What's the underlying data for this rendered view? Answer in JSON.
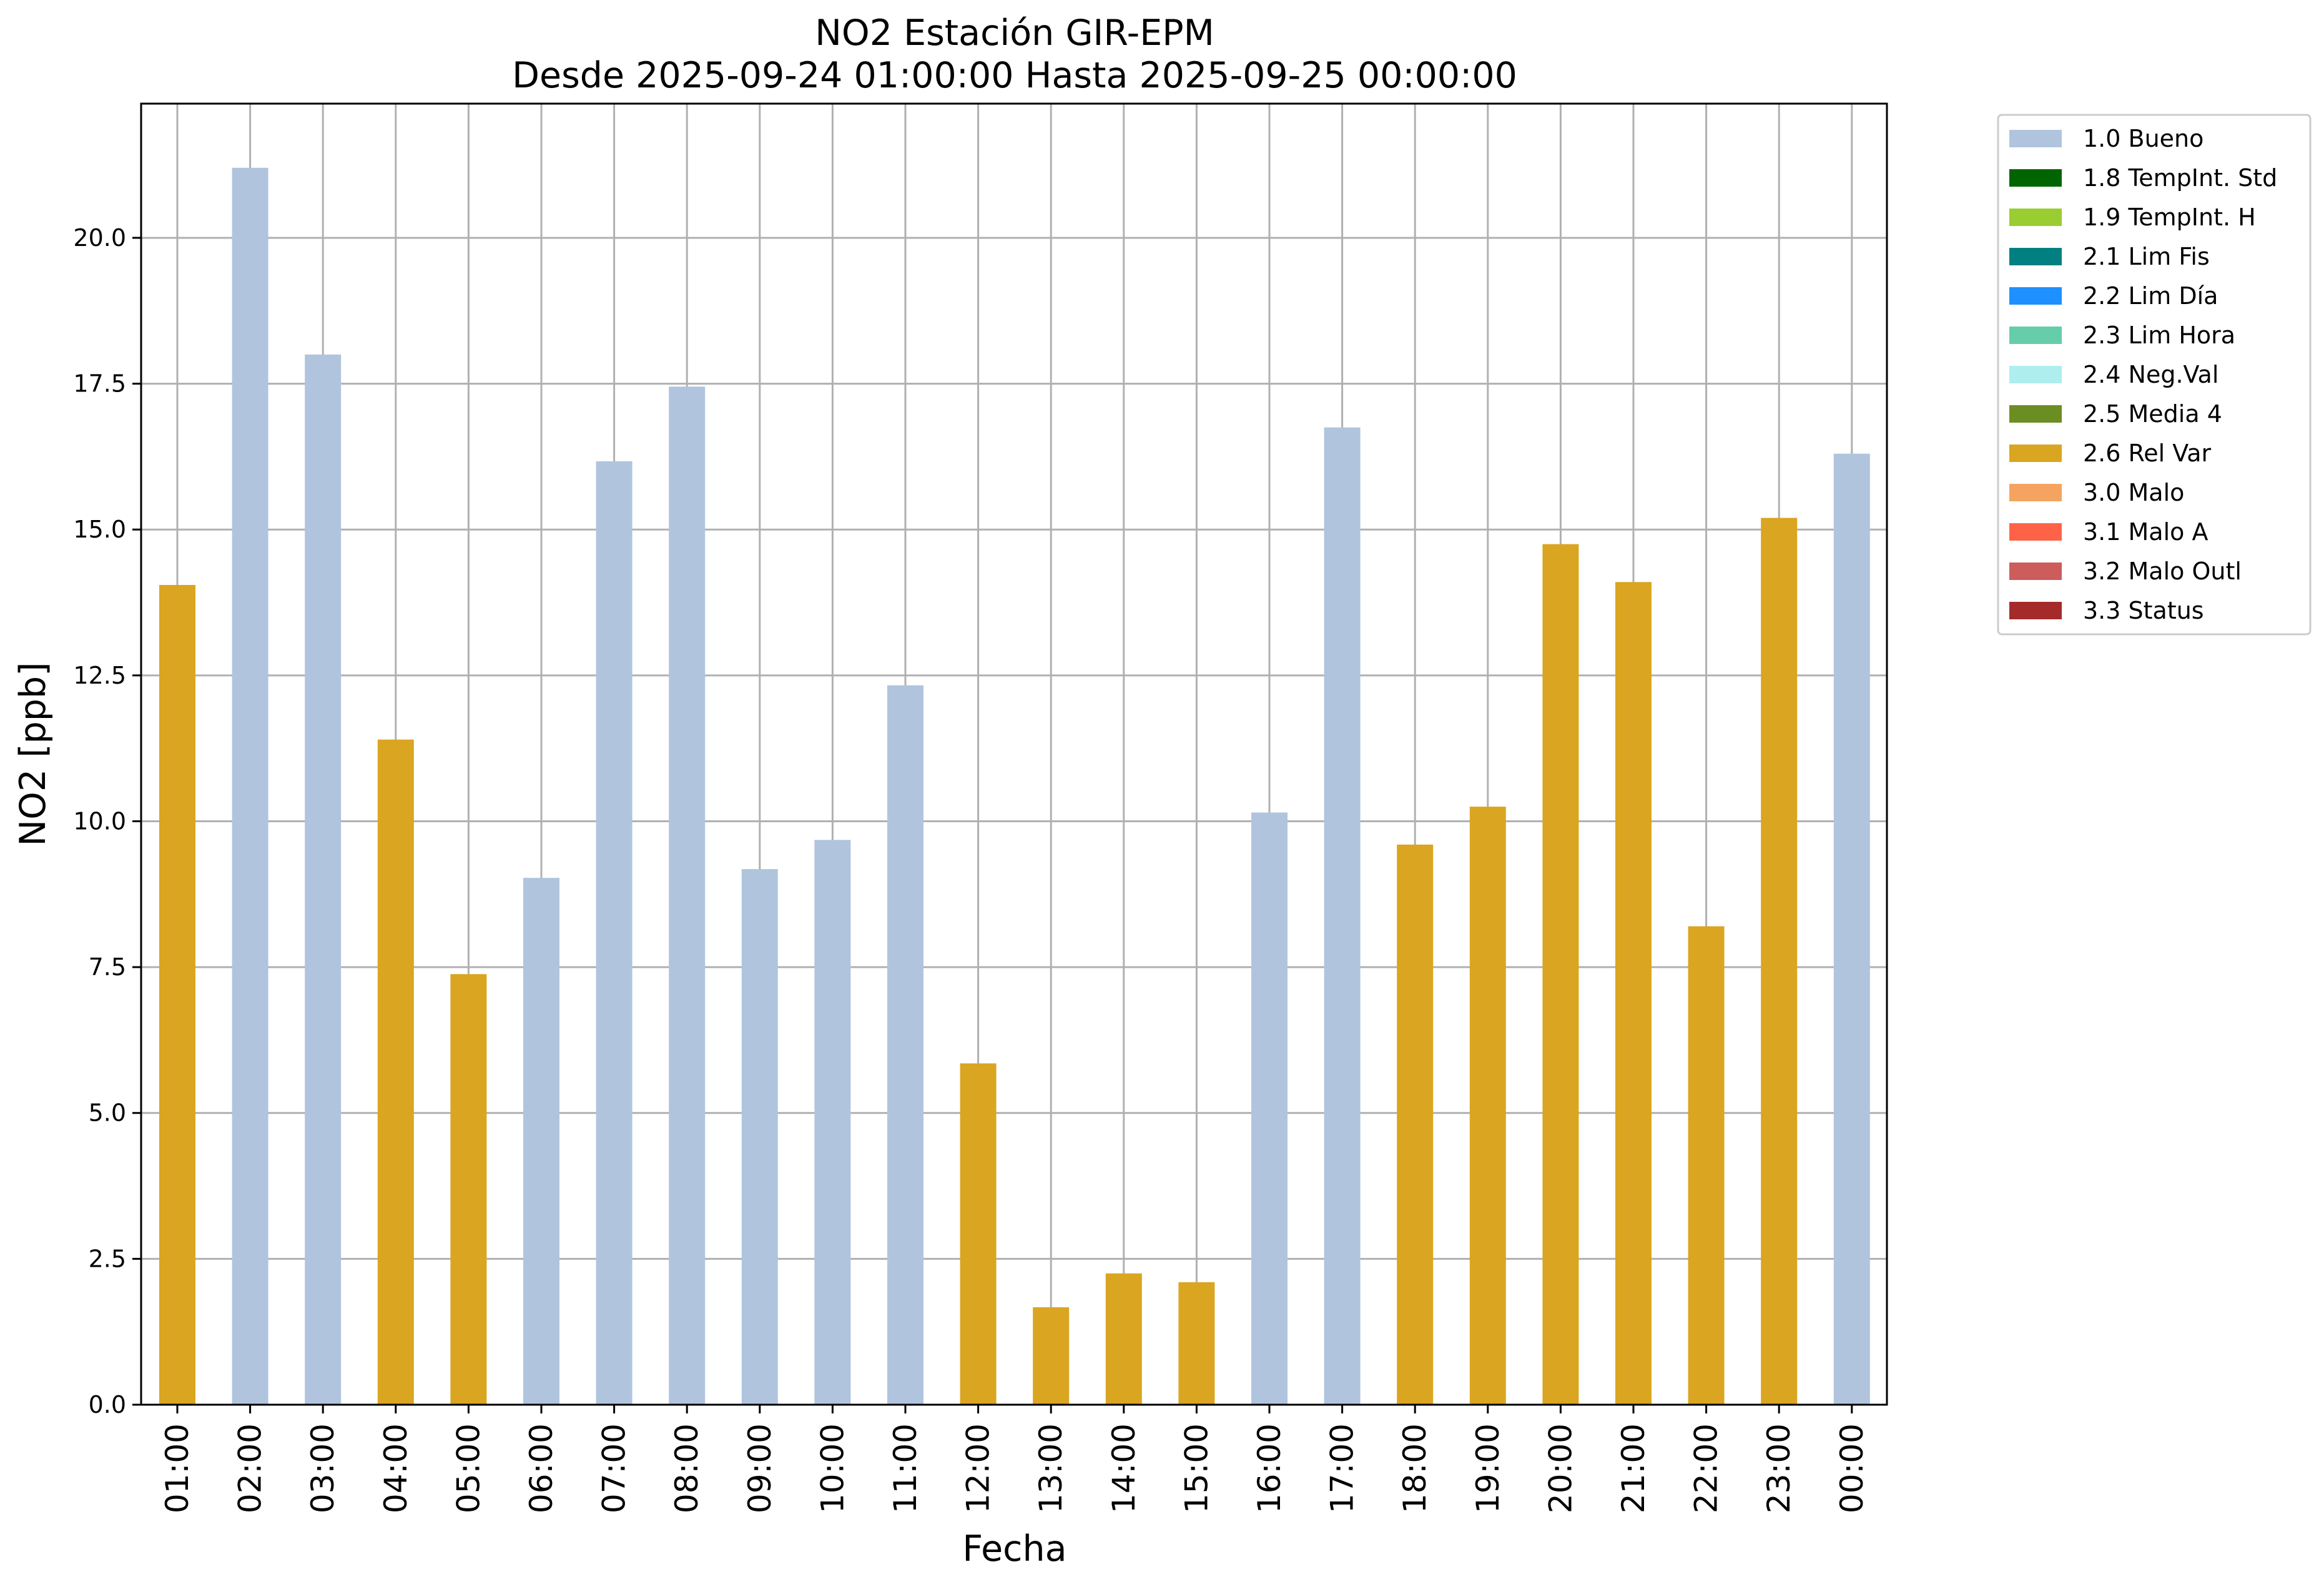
{
  "chart_data": {
    "type": "bar",
    "title": "NO2 Estación GIR-EPM",
    "subtitle": "Desde 2025-09-24 01:00:00 Hasta 2025-09-25 00:00:00",
    "xlabel": "Fecha",
    "ylabel": "NO2 [ppb]",
    "ylim": [
      0,
      22.3
    ],
    "yticks": [
      "0.0",
      "2.5",
      "5.0",
      "7.5",
      "10.0",
      "12.5",
      "15.0",
      "17.5",
      "20.0"
    ],
    "grid": true,
    "legend_position": "outside-right-top",
    "categories": [
      "01:00",
      "02:00",
      "03:00",
      "04:00",
      "05:00",
      "06:00",
      "07:00",
      "08:00",
      "09:00",
      "10:00",
      "11:00",
      "12:00",
      "13:00",
      "14:00",
      "15:00",
      "16:00",
      "17:00",
      "18:00",
      "19:00",
      "20:00",
      "21:00",
      "22:00",
      "23:00",
      "00:00"
    ],
    "values": [
      14.05,
      21.2,
      18.0,
      11.4,
      7.38,
      9.03,
      16.17,
      17.45,
      9.18,
      9.68,
      12.33,
      5.85,
      1.67,
      2.25,
      2.1,
      10.15,
      16.75,
      9.6,
      10.25,
      14.75,
      14.1,
      8.2,
      15.2,
      16.3
    ],
    "flags": [
      "2.6 Rel Var",
      "1.0 Bueno",
      "1.0 Bueno",
      "2.6 Rel Var",
      "2.6 Rel Var",
      "1.0 Bueno",
      "1.0 Bueno",
      "1.0 Bueno",
      "1.0 Bueno",
      "1.0 Bueno",
      "1.0 Bueno",
      "2.6 Rel Var",
      "2.6 Rel Var",
      "2.6 Rel Var",
      "2.6 Rel Var",
      "1.0 Bueno",
      "1.0 Bueno",
      "2.6 Rel Var",
      "2.6 Rel Var",
      "2.6 Rel Var",
      "2.6 Rel Var",
      "2.6 Rel Var",
      "2.6 Rel Var",
      "1.0 Bueno"
    ],
    "legend": [
      {
        "name": "1.0 Bueno",
        "color": "#b0c4de"
      },
      {
        "name": "1.8 TempInt. Std",
        "color": "#006400"
      },
      {
        "name": "1.9 TempInt. H",
        "color": "#9acd32"
      },
      {
        "name": "2.1 Lim Fis",
        "color": "#008080"
      },
      {
        "name": "2.2 Lim Día",
        "color": "#1e90ff"
      },
      {
        "name": "2.3 Lim Hora",
        "color": "#66cdaa"
      },
      {
        "name": "2.4 Neg.Val",
        "color": "#afeeee"
      },
      {
        "name": "2.5 Media 4",
        "color": "#6b8e23"
      },
      {
        "name": "2.6 Rel Var",
        "color": "#daa520"
      },
      {
        "name": "3.0 Malo",
        "color": "#f4a460"
      },
      {
        "name": "3.1 Malo A",
        "color": "#ff6347"
      },
      {
        "name": "3.2 Malo Outl",
        "color": "#cd5c5c"
      },
      {
        "name": "3.3 Status",
        "color": "#a52a2a"
      }
    ]
  }
}
